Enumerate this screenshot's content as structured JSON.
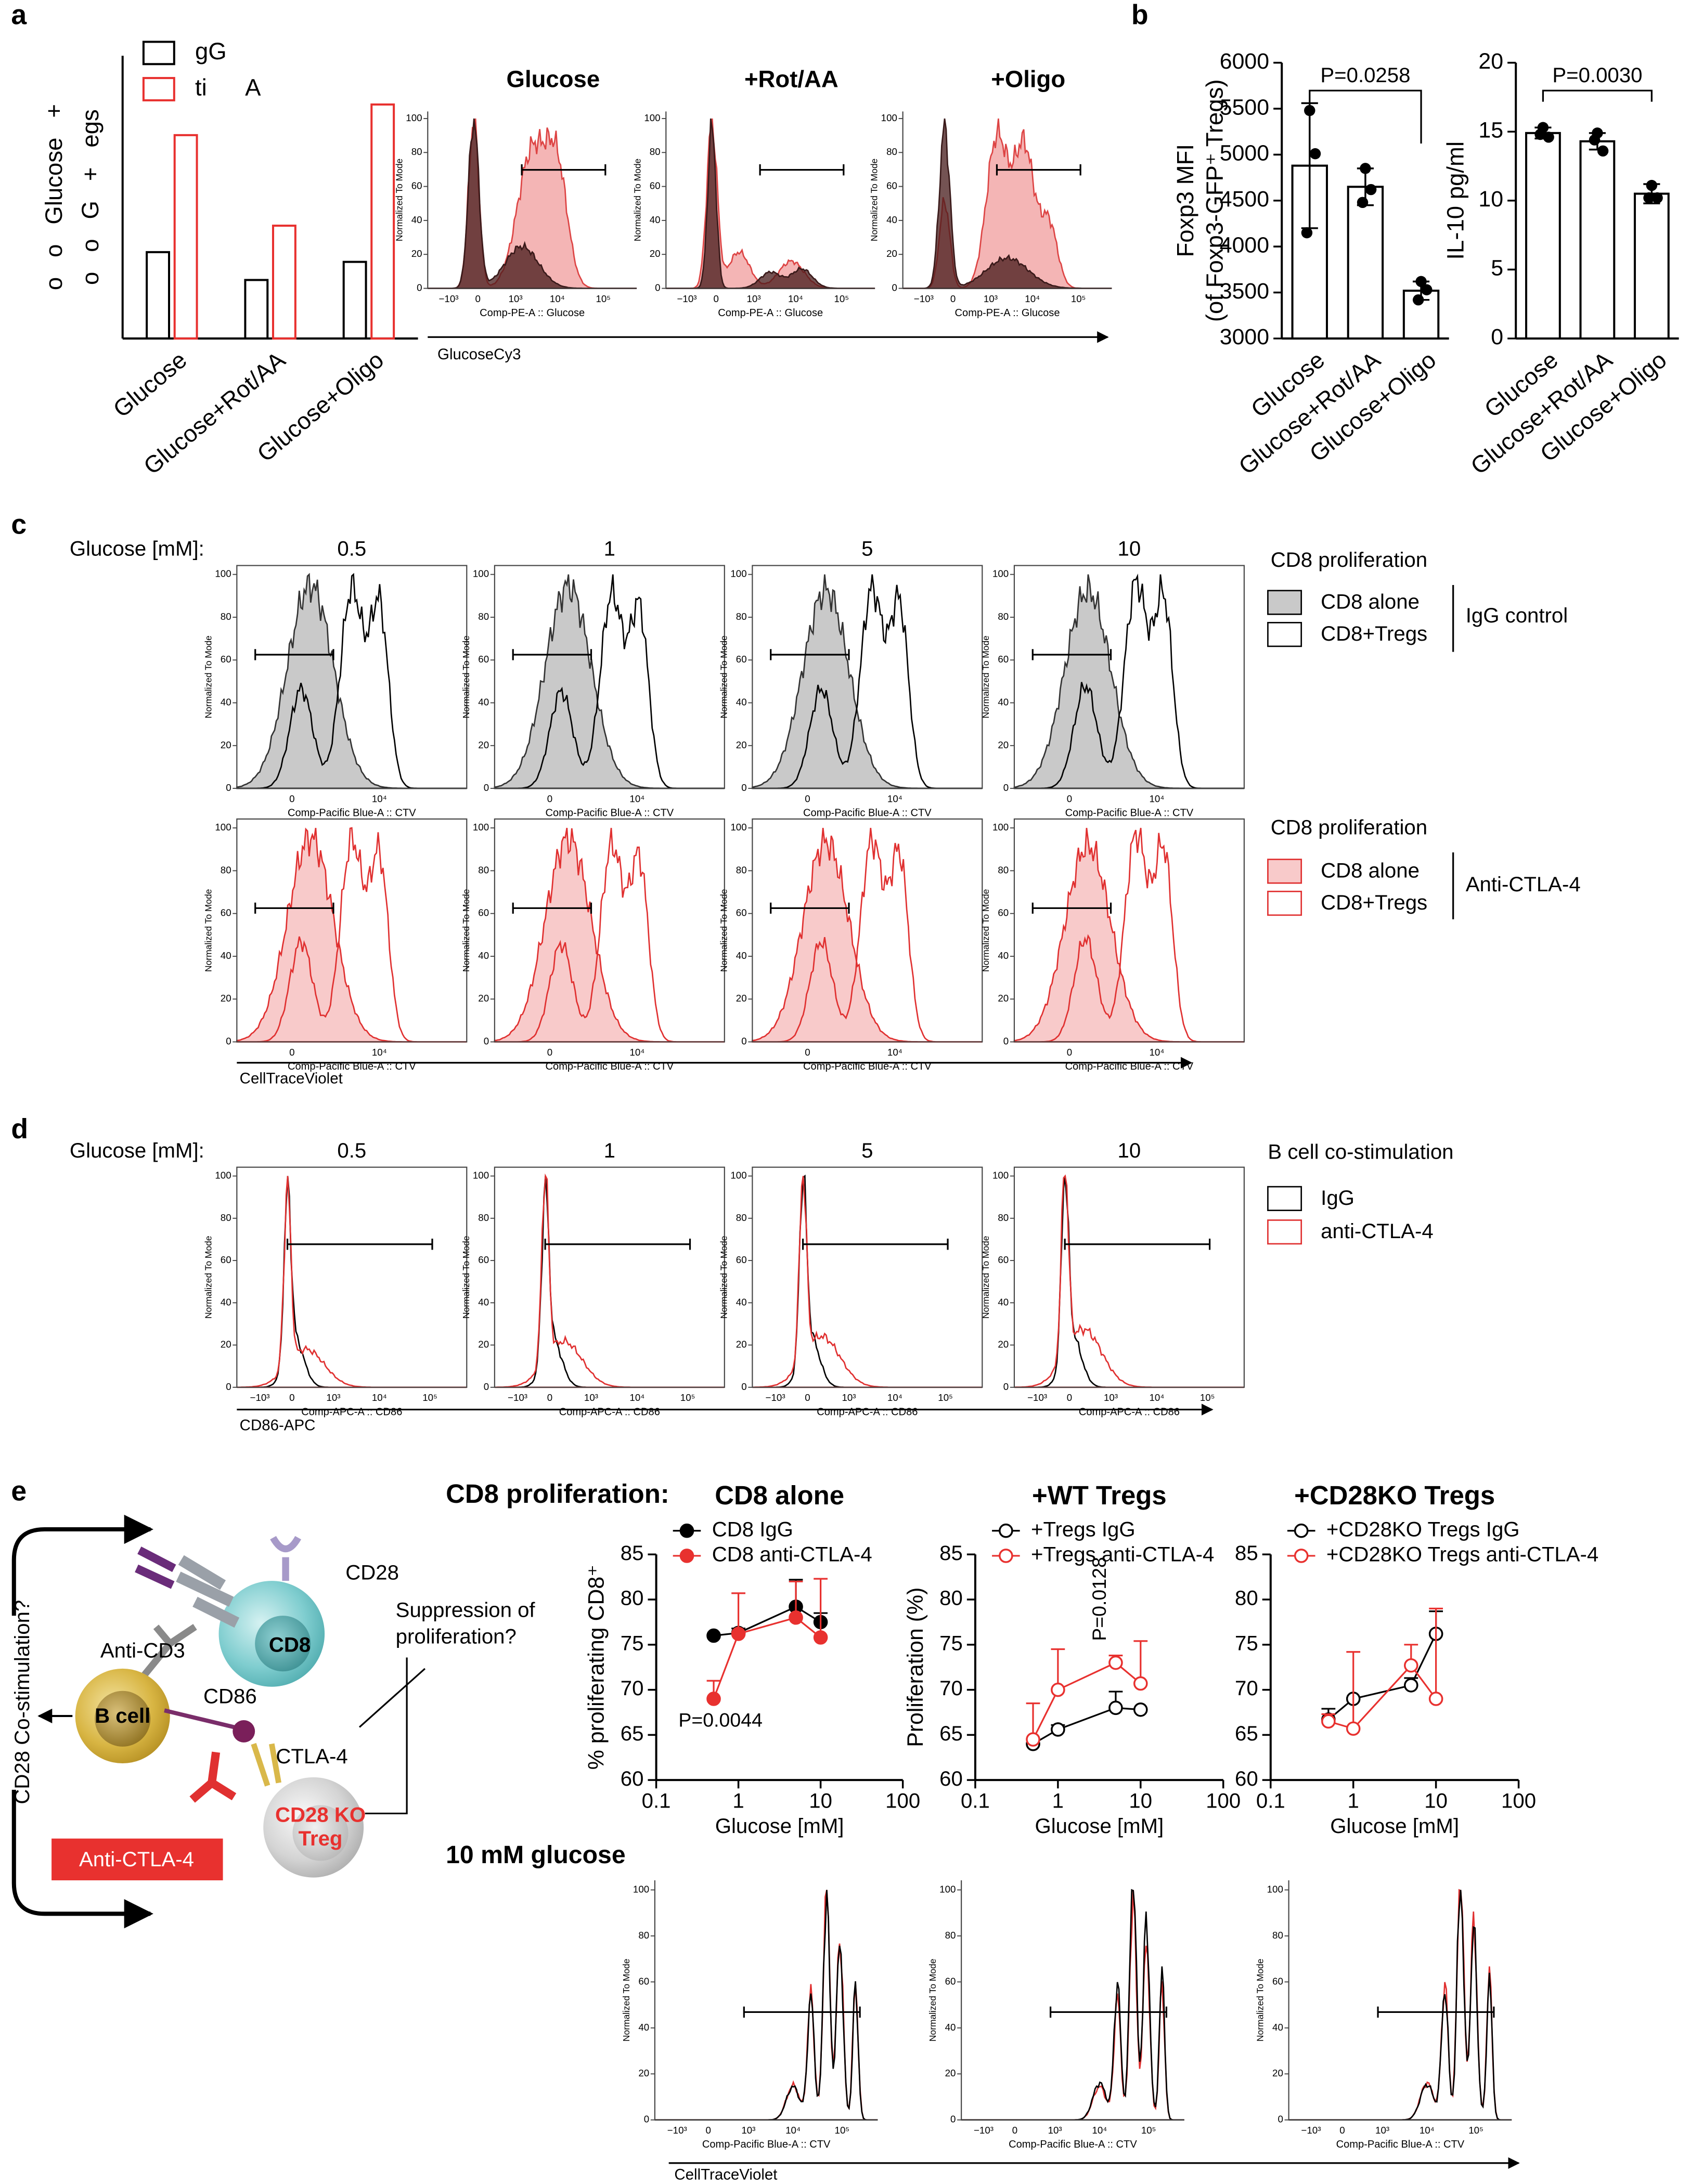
{
  "panel_labels": [
    "a",
    "b",
    "c",
    "d",
    "e"
  ],
  "chart_data": [
    {
      "type": "bar",
      "categories": [
        "Glucose",
        "Glucose+Rot/AA",
        "Glucose+Oligo"
      ],
      "series": [
        {
          "name": "gG",
          "color": "#000000",
          "values": [
            62,
            42,
            55
          ]
        },
        {
          "name": "ti      A",
          "color": "#e8312f",
          "values": [
            146,
            81,
            168
          ]
        }
      ],
      "ylabel": [
        "o   o   Glucose   +",
        "o   o   G   +   egs"
      ],
      "ylim": [
        0,
        203
      ]
    },
    {
      "type": "bar",
      "categories": [
        "Glucose",
        "Glucose+Rot/AA",
        "Glucose+Oligo"
      ],
      "values": [
        4880,
        4650,
        3520
      ],
      "errors": [
        680,
        200,
        100
      ],
      "points": [
        [
          5480,
          5010,
          4150
        ],
        [
          4850,
          4620,
          4480
        ],
        [
          3620,
          3530,
          3420
        ]
      ],
      "color": "#000000",
      "ylabel": [
        "Foxp3 MFI",
        "(of Foxp3-GFP⁺ Tregs)"
      ],
      "ylim": [
        3000,
        6000
      ],
      "yticks": [
        3000,
        3500,
        4000,
        4500,
        5000,
        5500,
        6000
      ],
      "annotation": "P=0.0258"
    },
    {
      "type": "bar",
      "categories": [
        "Glucose",
        "Glucose+Rot/AA",
        "Glucose+Oligo"
      ],
      "values": [
        14.9,
        14.3,
        10.5
      ],
      "errors": [
        0.4,
        0.6,
        0.7
      ],
      "points": [
        [
          15.3,
          14.6,
          14.8
        ],
        [
          14.9,
          13.6,
          14.4
        ],
        [
          11.1,
          10.2,
          10.2
        ]
      ],
      "color": "#000000",
      "ylabel": [
        "IL-10 pg/ml"
      ],
      "ylim": [
        0,
        20
      ],
      "yticks": [
        0,
        5,
        10,
        15,
        20
      ],
      "annotation": "P=0.0030"
    },
    {
      "type": "line",
      "title": "CD8 alone",
      "xlabel": "Glucose [mM]",
      "ylabel": "% proliferating CD8⁺",
      "log_x": true,
      "xlim": [
        0.1,
        100
      ],
      "xticks": [
        0.1,
        1,
        10,
        100
      ],
      "ylim": [
        60,
        85
      ],
      "yticks": [
        60,
        65,
        70,
        75,
        80,
        85
      ],
      "x": [
        0.5,
        1,
        5,
        10
      ],
      "series": [
        {
          "name": "CD8 IgG",
          "color": "#000000",
          "marker": "filled",
          "values": [
            76.0,
            76.3,
            79.2,
            77.5
          ],
          "errors": [
            0,
            0.5,
            3.0,
            1.0
          ]
        },
        {
          "name": "CD8 anti-CTLA-4",
          "color": "#e8312f",
          "marker": "filled",
          "values": [
            69.0,
            76.2,
            78.0,
            75.8
          ],
          "errors": [
            2.0,
            4.5,
            4.0,
            6.5
          ]
        }
      ],
      "annotation": "P=0.0044"
    },
    {
      "type": "line",
      "title": "+WT Tregs",
      "xlabel": "Glucose [mM]",
      "ylabel": "Proliferation (%)",
      "log_x": true,
      "xlim": [
        0.1,
        100
      ],
      "xticks": [
        0.1,
        1,
        10,
        100
      ],
      "ylim": [
        60,
        85
      ],
      "yticks": [
        60,
        65,
        70,
        75,
        80,
        85
      ],
      "x": [
        0.5,
        1,
        5,
        10
      ],
      "series": [
        {
          "name": "+Tregs IgG",
          "color": "#000000",
          "marker": "open",
          "values": [
            64.0,
            65.6,
            68.0,
            67.8
          ],
          "errors": [
            0.5,
            0.5,
            1.8,
            0
          ]
        },
        {
          "name": "+Tregs anti-CTLA-4",
          "color": "#e8312f",
          "marker": "open",
          "values": [
            64.5,
            70.0,
            73.0,
            70.7
          ],
          "errors": [
            4.0,
            4.5,
            0.8,
            4.7
          ]
        }
      ],
      "annotation": "P=0.0128"
    },
    {
      "type": "line",
      "title": "+CD28KO Tregs",
      "xlabel": "Glucose [mM]",
      "log_x": true,
      "xlim": [
        0.1,
        100
      ],
      "xticks": [
        0.1,
        1,
        10,
        100
      ],
      "ylim": [
        60,
        85
      ],
      "yticks": [
        60,
        65,
        70,
        75,
        80,
        85
      ],
      "x": [
        0.5,
        1,
        5,
        10
      ],
      "series": [
        {
          "name": "+CD28KO Tregs IgG",
          "color": "#000000",
          "marker": "open",
          "values": [
            66.7,
            69.0,
            70.5,
            76.2
          ],
          "errors": [
            1.2,
            0,
            0.8,
            2.5
          ]
        },
        {
          "name": "+CD28KO Tregs anti-CTLA-4",
          "color": "#e8312f",
          "marker": "open",
          "values": [
            66.5,
            65.7,
            72.7,
            69.0
          ],
          "errors": [
            0.8,
            8.5,
            2.3,
            10.0
          ]
        }
      ]
    }
  ],
  "flow": {
    "ylabel": "Normalized To Mode",
    "yticks": [
      0,
      20,
      40,
      60,
      80,
      100
    ],
    "xticks": [
      "−10³",
      "0",
      "10³",
      "10⁴",
      "10⁵"
    ]
  },
  "panel_a": {
    "titles": [
      "Glucose",
      "+Rot/AA",
      "+Oligo"
    ],
    "xlabel": "Comp-PE-A :: Glucose",
    "axis_label": "GlucoseCy3"
  },
  "panel_c": {
    "header": "Glucose [mM]:",
    "concentrations": [
      "0.5",
      "1",
      "5",
      "10"
    ],
    "xlabel": "Comp-Pacific Blue-A :: CTV",
    "axis_label": "CellTraceViolet",
    "legends": [
      {
        "title": "CD8 proliferation",
        "items": [
          "CD8 alone",
          "CD8+Tregs"
        ],
        "group": "IgG control"
      },
      {
        "title": "CD8 proliferation",
        "items": [
          "CD8 alone",
          "CD8+Tregs"
        ],
        "group": "Anti-CTLA-4"
      }
    ]
  },
  "panel_d": {
    "header": "Glucose [mM]:",
    "concentrations": [
      "0.5",
      "1",
      "5",
      "10"
    ],
    "xlabel": "Comp-APC-A :: CD86",
    "axis_label": "CD86-APC",
    "legend": {
      "title": "B cell co-stimulation",
      "items": [
        "IgG",
        "anti-CTLA-4"
      ]
    }
  },
  "panel_e": {
    "header": "CD8 proliferation:",
    "subheader": "10 mM glucose",
    "xlabel": "Comp-Pacific Blue-A :: CTV",
    "axis_label": "CellTraceViolet",
    "schematic": {
      "cd28": "CD28",
      "cd8": "CD8",
      "anti_cd3": "Anti-CD3",
      "b_cell": "B cell",
      "cd86": "CD86",
      "ctla4": "CTLA-4",
      "treg": [
        "CD28 KO",
        "Treg"
      ],
      "anti_ctla4": "Anti-CTLA-4",
      "suppression": [
        "Suppression of",
        "proliferation?"
      ],
      "costim": "CD28 Co-stimulation?"
    }
  }
}
